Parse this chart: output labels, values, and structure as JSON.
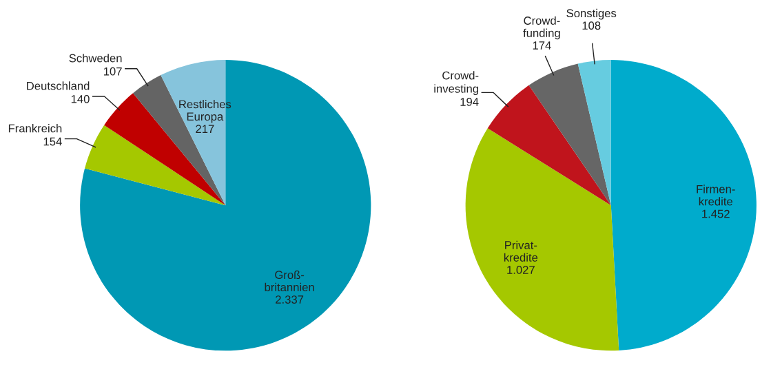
{
  "chart_data": [
    {
      "type": "pie",
      "categories": [
        "Groß-\nbritannien",
        "Frankreich",
        "Deutschland",
        "Schweden",
        "Restliches\nEuropa"
      ],
      "values": [
        2337,
        154,
        140,
        107,
        217
      ],
      "value_labels": [
        "2.337",
        "154",
        "140",
        "107",
        "217"
      ],
      "colors": [
        "#0098b4",
        "#a5c800",
        "#c00000",
        "#646464",
        "#86c4dc"
      ]
    },
    {
      "type": "pie",
      "categories": [
        "Firmen-\nkredite",
        "Privat-\nkredite",
        "Crowd-\ninvesting",
        "Crowd-\nfunding",
        "Sonstiges"
      ],
      "values": [
        1452,
        1027,
        194,
        174,
        108
      ],
      "value_labels": [
        "1.452",
        "1.027",
        "194",
        "174",
        "108"
      ],
      "colors": [
        "#00abcc",
        "#a5c800",
        "#c0141c",
        "#666666",
        "#66cce0"
      ]
    }
  ]
}
